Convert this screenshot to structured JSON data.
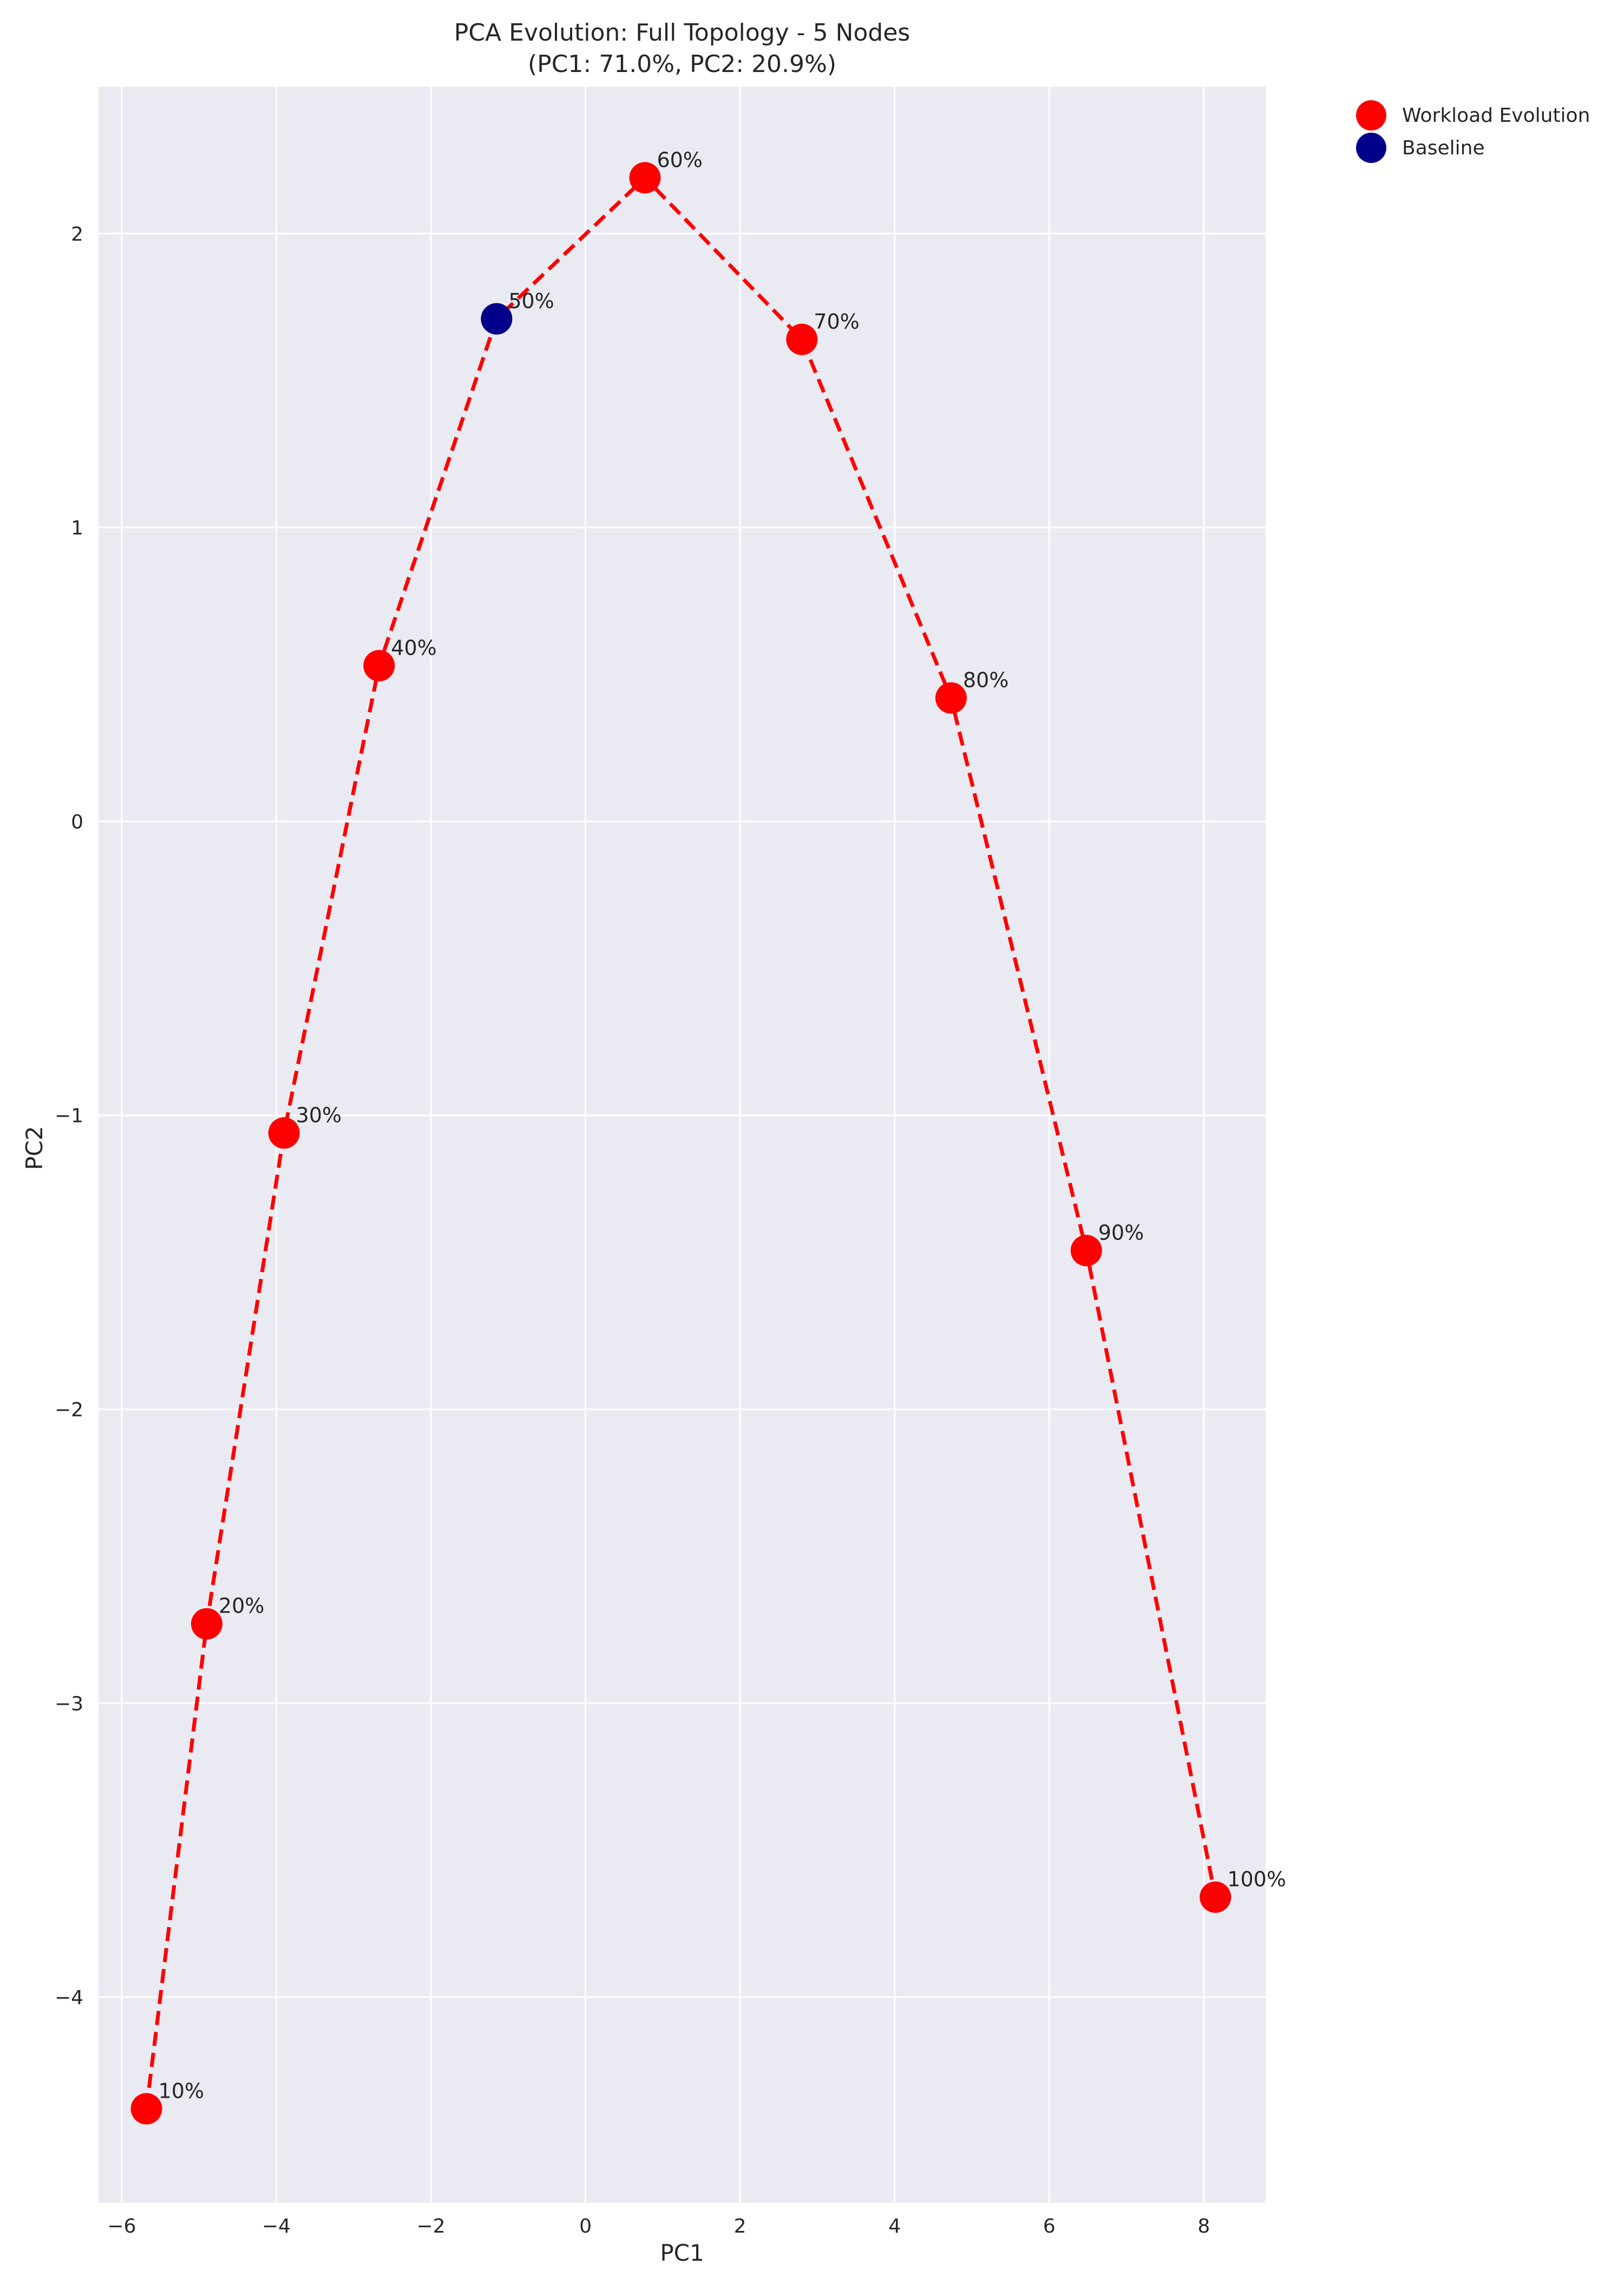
{
  "chart_data": {
    "type": "scatter",
    "title": "PCA Evolution: Full Topology - 5 Nodes",
    "subtitle": "(PC1: 71.0%, PC2: 20.9%)",
    "xlabel": "PC1",
    "ylabel": "PC2",
    "xlim": [
      -6.3,
      8.8
    ],
    "ylim": [
      -4.7,
      2.5
    ],
    "xticks": [
      -6,
      -4,
      -2,
      0,
      2,
      4,
      6,
      8
    ],
    "yticks": [
      -4,
      -3,
      -2,
      -1,
      0,
      1,
      2
    ],
    "xtick_labels": [
      "−6",
      "−4",
      "−2",
      "0",
      "2",
      "4",
      "6",
      "8"
    ],
    "ytick_labels": [
      "−4",
      "−3",
      "−2",
      "−1",
      "0",
      "1",
      "2"
    ],
    "grid": true,
    "legend_position": "outside-top-right",
    "colors": {
      "background": "#eaeaf2",
      "grid": "#ffffff",
      "workload": "#ff0000",
      "line": "#ff0000",
      "baseline": "#00008b"
    },
    "series": [
      {
        "name": "Workload Evolution",
        "connected": true,
        "points": [
          {
            "label": "10%",
            "x": -5.68,
            "y": -4.38
          },
          {
            "label": "20%",
            "x": -4.9,
            "y": -2.73
          },
          {
            "label": "30%",
            "x": -3.9,
            "y": -1.06
          },
          {
            "label": "40%",
            "x": -2.67,
            "y": 0.53
          },
          {
            "label": "50%",
            "x": -1.15,
            "y": 1.71
          },
          {
            "label": "60%",
            "x": 0.77,
            "y": 2.19
          },
          {
            "label": "70%",
            "x": 2.8,
            "y": 1.64
          },
          {
            "label": "80%",
            "x": 4.73,
            "y": 0.42
          },
          {
            "label": "90%",
            "x": 6.48,
            "y": -1.46
          },
          {
            "label": "100%",
            "x": 8.15,
            "y": -3.66
          }
        ]
      },
      {
        "name": "Baseline",
        "connected": false,
        "points": [
          {
            "x": -1.15,
            "y": 1.71
          }
        ]
      }
    ]
  }
}
